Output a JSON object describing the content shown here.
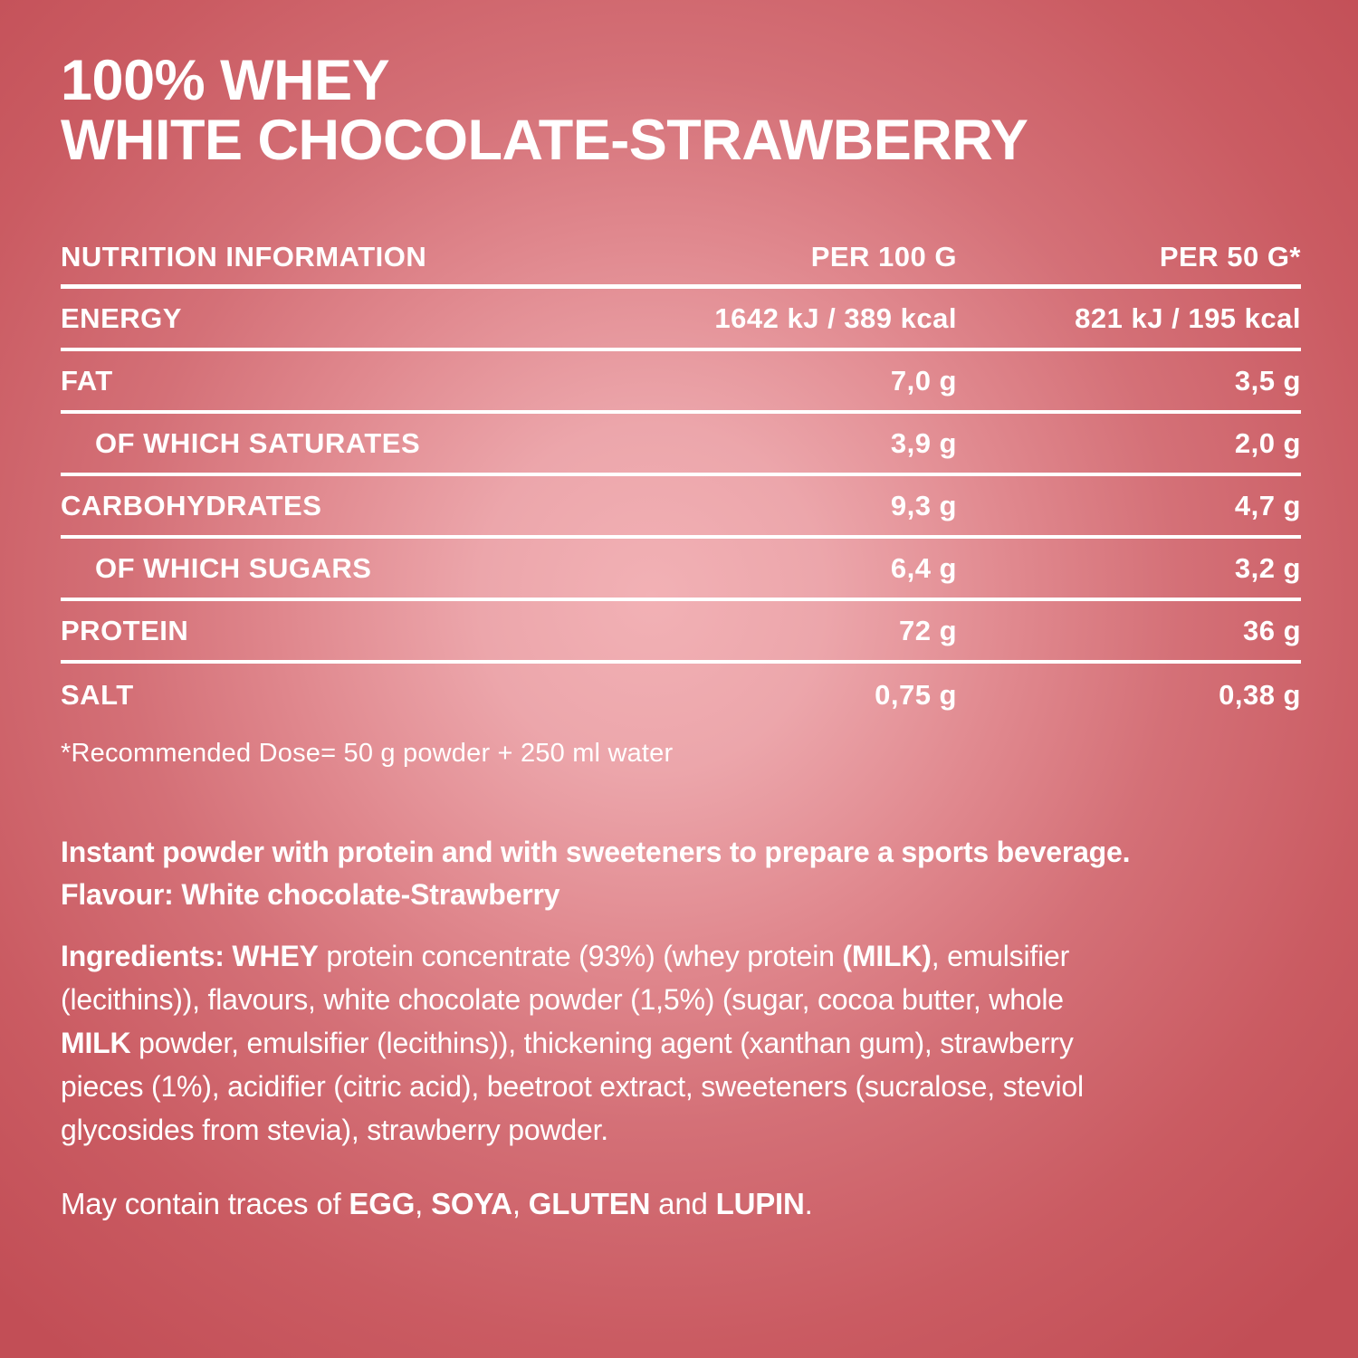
{
  "title": {
    "line1": "100% WHEY",
    "line2": "WHITE CHOCOLATE-STRAWBERRY"
  },
  "colors": {
    "background_center": "#f2b1b5",
    "background_edge": "#c24e56",
    "text": "#ffffff",
    "divider": "#ffffff"
  },
  "nutrition_table": {
    "headers": [
      "NUTRITION INFORMATION",
      "PER 100 G",
      "PER 50 G*"
    ],
    "rows": [
      {
        "label": "ENERGY",
        "per_100g": "1642 kJ / 389 kcal",
        "per_50g": "821 kJ / 195 kcal",
        "indent": false
      },
      {
        "label": "FAT",
        "per_100g": "7,0 g",
        "per_50g": "3,5 g",
        "indent": false
      },
      {
        "label": "OF WHICH SATURATES",
        "per_100g": "3,9 g",
        "per_50g": "2,0 g",
        "indent": true
      },
      {
        "label": "CARBOHYDRATES",
        "per_100g": "9,3 g",
        "per_50g": "4,7 g",
        "indent": false
      },
      {
        "label": "OF WHICH SUGARS",
        "per_100g": "6,4 g",
        "per_50g": "3,2 g",
        "indent": true
      },
      {
        "label": "PROTEIN",
        "per_100g": "72 g",
        "per_50g": "36 g",
        "indent": false
      },
      {
        "label": "SALT",
        "per_100g": "0,75 g",
        "per_50g": "0,38 g",
        "indent": false
      }
    ],
    "footnote": "*Recommended Dose= 50 g powder + 250 ml water"
  },
  "description": {
    "segments": [
      {
        "text": "Instant powder with protein and with sweeteners to prepare a sports beverage.",
        "bold": true
      },
      {
        "br": true
      },
      {
        "text": "Flavour: White chocolate-Strawberry",
        "bold": true
      }
    ]
  },
  "ingredients": {
    "segments": [
      {
        "text": "Ingredients: WHEY",
        "bold": true
      },
      {
        "text": " protein concentrate (93%) (whey protein ",
        "bold": false
      },
      {
        "text": "(MILK)",
        "bold": true
      },
      {
        "text": ", emulsifier",
        "bold": false
      },
      {
        "br": true
      },
      {
        "text": "(lecithins)), flavours, white chocolate powder (1,5%) (sugar, cocoa butter, whole",
        "bold": false
      },
      {
        "br": true
      },
      {
        "text": "MILK",
        "bold": true
      },
      {
        "text": " powder, emulsifier (lecithins)), thickening agent (xanthan gum), strawberry",
        "bold": false
      },
      {
        "br": true
      },
      {
        "text": "pieces (1%), acidifier (citric acid), beetroot extract, sweeteners (sucralose, steviol",
        "bold": false
      },
      {
        "br": true
      },
      {
        "text": "glycosides from stevia), strawberry powder.",
        "bold": false
      }
    ]
  },
  "traces": {
    "segments": [
      {
        "text": "May contain traces of ",
        "bold": false
      },
      {
        "text": "EGG",
        "bold": true
      },
      {
        "text": ", ",
        "bold": false
      },
      {
        "text": "SOYA",
        "bold": true
      },
      {
        "text": ", ",
        "bold": false
      },
      {
        "text": "GLUTEN",
        "bold": true
      },
      {
        "text": " and ",
        "bold": false
      },
      {
        "text": "LUPIN",
        "bold": true
      },
      {
        "text": ".",
        "bold": false
      }
    ]
  }
}
